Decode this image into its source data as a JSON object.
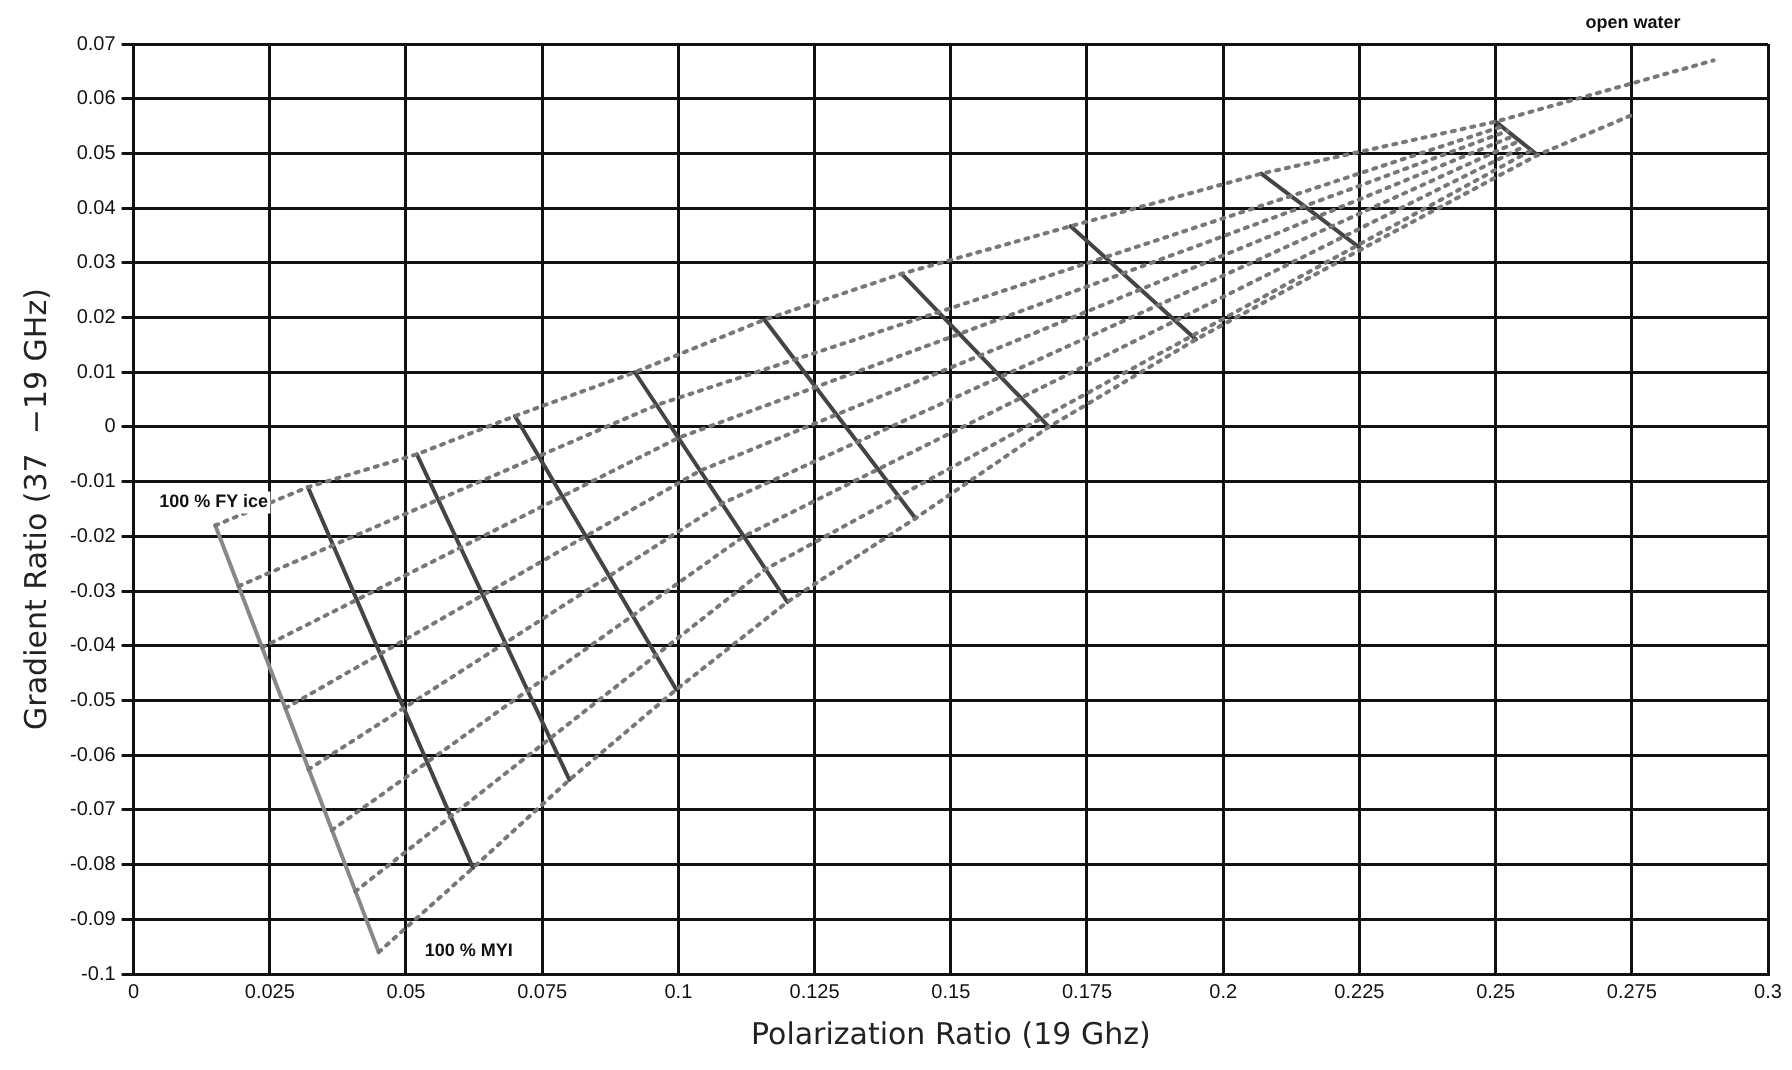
{
  "chart_data": {
    "type": "line",
    "xlabel": "Polarization Ratio (19 Ghz)",
    "ylabel": "Gradient Ratio (37  −19 GHz)",
    "xlim": [
      0,
      0.3
    ],
    "xticks": [
      0,
      0.025,
      0.05,
      0.075,
      0.1,
      0.125,
      0.15,
      0.175,
      0.2,
      0.225,
      0.25,
      0.275,
      0.3
    ],
    "ylim": [
      -0.1,
      0.07
    ],
    "yticks": [
      -0.1,
      -0.09,
      -0.08,
      -0.07,
      -0.06,
      -0.05,
      -0.04,
      -0.03,
      -0.02,
      -0.01,
      0,
      0.01,
      0.02,
      0.03,
      0.04,
      0.05,
      0.06,
      0.07
    ],
    "grid": true,
    "legend": false,
    "marker": "none",
    "annotations": [
      {
        "text": "open water",
        "x": 0.29,
        "y": 0.067
      },
      {
        "text": "100 % FY ice",
        "x": 0.015,
        "y": -0.018
      },
      {
        "text": "100 % MYI",
        "x": 0.045,
        "y": -0.096
      }
    ],
    "series": [
      {
        "type": "line",
        "line_style": "dotted",
        "color": "#777777",
        "x": [
          0.015,
          0.032,
          0.052,
          0.07,
          0.092,
          0.1158,
          0.141,
          0.172,
          0.207,
          0.25,
          0.29
        ],
        "values": [
          -0.018,
          -0.011,
          -0.005,
          0.002,
          0.01,
          0.0196,
          0.028,
          0.0367,
          0.0463,
          0.0558,
          0.067
        ]
      },
      {
        "type": "line",
        "line_style": "dotted",
        "color": "#777777",
        "x": [
          0.0193,
          0.096,
          0.2511
        ],
        "values": [
          -0.0291,
          0.004,
          0.0549
        ]
      },
      {
        "type": "line",
        "line_style": "dotted",
        "color": "#777777",
        "x": [
          0.0236,
          0.1,
          0.2522
        ],
        "values": [
          -0.0403,
          -0.002,
          0.0541
        ]
      },
      {
        "type": "line",
        "line_style": "dotted",
        "color": "#777777",
        "x": [
          0.0279,
          0.104,
          0.2533
        ],
        "values": [
          -0.0514,
          -0.008,
          0.0532
        ]
      },
      {
        "type": "line",
        "line_style": "dotted",
        "color": "#777777",
        "x": [
          0.0321,
          0.108,
          0.2544
        ],
        "values": [
          -0.0626,
          -0.014,
          0.0523
        ]
      },
      {
        "type": "line",
        "line_style": "dotted",
        "color": "#777777",
        "x": [
          0.0364,
          0.112,
          0.2555
        ],
        "values": [
          -0.0737,
          -0.02,
          0.0514
        ]
      },
      {
        "type": "line",
        "line_style": "dotted",
        "color": "#777777",
        "x": [
          0.0407,
          0.116,
          0.2566
        ],
        "values": [
          -0.0849,
          -0.026,
          0.0506
        ]
      },
      {
        "type": "line",
        "line_style": "dotted",
        "color": "#777777",
        "x": [
          0.045,
          0.0623,
          0.08,
          0.0996,
          0.12,
          0.1435,
          0.168,
          0.195,
          0.2254,
          0.2577,
          0.275
        ],
        "values": [
          -0.096,
          -0.0806,
          -0.0645,
          -0.048,
          -0.032,
          -0.0167,
          0,
          0.016,
          0.0325,
          0.0497,
          0.057
        ]
      },
      {
        "type": "line",
        "line_style": "solid",
        "color": "#888888",
        "x": [
          0.015,
          0.045
        ],
        "values": [
          -0.018,
          -0.096
        ]
      },
      {
        "type": "line",
        "line_style": "solid",
        "color": "#444444",
        "x": [
          0.032,
          0.0623
        ],
        "values": [
          -0.011,
          -0.0806
        ]
      },
      {
        "type": "line",
        "line_style": "solid",
        "color": "#444444",
        "x": [
          0.052,
          0.08
        ],
        "values": [
          -0.005,
          -0.0645
        ]
      },
      {
        "type": "line",
        "line_style": "solid",
        "color": "#444444",
        "x": [
          0.07,
          0.0996
        ],
        "values": [
          0.002,
          -0.048
        ]
      },
      {
        "type": "line",
        "line_style": "solid",
        "color": "#444444",
        "x": [
          0.092,
          0.12
        ],
        "values": [
          0.01,
          -0.032
        ]
      },
      {
        "type": "line",
        "line_style": "solid",
        "color": "#444444",
        "x": [
          0.1158,
          0.1435
        ],
        "values": [
          0.0196,
          -0.0167
        ]
      },
      {
        "type": "line",
        "line_style": "solid",
        "color": "#444444",
        "x": [
          0.141,
          0.168
        ],
        "values": [
          0.028,
          0
        ]
      },
      {
        "type": "line",
        "line_style": "solid",
        "color": "#444444",
        "x": [
          0.172,
          0.195
        ],
        "values": [
          0.0367,
          0.016
        ]
      },
      {
        "type": "line",
        "line_style": "solid",
        "color": "#444444",
        "x": [
          0.207,
          0.2254
        ],
        "values": [
          0.0463,
          0.0325
        ]
      },
      {
        "type": "line",
        "line_style": "solid",
        "color": "#444444",
        "x": [
          0.25,
          0.2577
        ],
        "values": [
          0.0558,
          0.0497
        ]
      }
    ]
  }
}
